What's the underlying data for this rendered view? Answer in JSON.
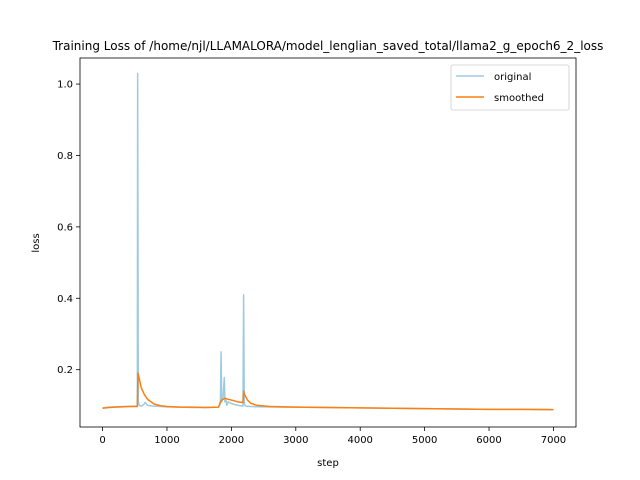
{
  "chart_data": {
    "type": "line",
    "title": "Training Loss of /home/njl/LLAMALORA/model_lenglian_saved_total/llama2_g_epoch6_2_loss",
    "xlabel": "step",
    "ylabel": "loss",
    "xlim": [
      -350,
      7350
    ],
    "ylim": [
      0.0395,
      1.073
    ],
    "xticks": [
      0,
      1000,
      2000,
      3000,
      4000,
      5000,
      6000,
      7000
    ],
    "yticks": [
      0.2,
      0.4,
      0.6,
      0.8,
      1.0
    ],
    "xtick_labels": [
      "0",
      "1000",
      "2000",
      "3000",
      "4000",
      "5000",
      "6000",
      "7000"
    ],
    "ytick_labels": [
      "0.2",
      "0.4",
      "0.6",
      "0.8",
      "1.0"
    ],
    "grid": false,
    "legend_position": "top-right",
    "series": [
      {
        "name": "original",
        "color": "#9ecae1",
        "x": [
          0,
          100,
          200,
          300,
          400,
          500,
          540,
          545,
          555,
          570,
          600,
          640,
          660,
          700,
          800,
          1000,
          1200,
          1400,
          1600,
          1800,
          1830,
          1840,
          1850,
          1870,
          1890,
          1900,
          1910,
          1930,
          1950,
          2000,
          2100,
          2180,
          2190,
          2200,
          2210,
          2230,
          2300,
          2500,
          2800,
          3000,
          3500,
          4000,
          4500,
          5000,
          5500,
          6000,
          6500,
          7000
        ],
        "y": [
          0.093,
          0.095,
          0.096,
          0.097,
          0.097,
          0.098,
          0.098,
          1.03,
          0.11,
          0.1,
          0.098,
          0.102,
          0.108,
          0.1,
          0.098,
          0.096,
          0.095,
          0.094,
          0.094,
          0.095,
          0.105,
          0.25,
          0.11,
          0.12,
          0.178,
          0.11,
          0.12,
          0.1,
          0.11,
          0.105,
          0.1,
          0.098,
          0.41,
          0.11,
          0.1,
          0.098,
          0.097,
          0.096,
          0.095,
          0.095,
          0.094,
          0.093,
          0.092,
          0.091,
          0.09,
          0.089,
          0.089,
          0.088
        ]
      },
      {
        "name": "smoothed",
        "color": "#ff7f0e",
        "x": [
          0,
          100,
          200,
          300,
          400,
          500,
          540,
          550,
          570,
          600,
          650,
          700,
          800,
          900,
          1000,
          1200,
          1400,
          1600,
          1800,
          1830,
          1850,
          1900,
          1950,
          2000,
          2100,
          2180,
          2190,
          2200,
          2250,
          2300,
          2400,
          2600,
          3000,
          3500,
          4000,
          4500,
          5000,
          5500,
          6000,
          6500,
          7000
        ],
        "y": [
          0.092,
          0.094,
          0.095,
          0.096,
          0.097,
          0.097,
          0.097,
          0.19,
          0.175,
          0.15,
          0.13,
          0.117,
          0.104,
          0.099,
          0.097,
          0.095,
          0.095,
          0.094,
          0.095,
          0.11,
          0.115,
          0.12,
          0.117,
          0.115,
          0.11,
          0.108,
          0.14,
          0.132,
          0.115,
          0.106,
          0.1,
          0.097,
          0.095,
          0.094,
          0.093,
          0.092,
          0.091,
          0.09,
          0.089,
          0.089,
          0.088
        ]
      }
    ]
  }
}
